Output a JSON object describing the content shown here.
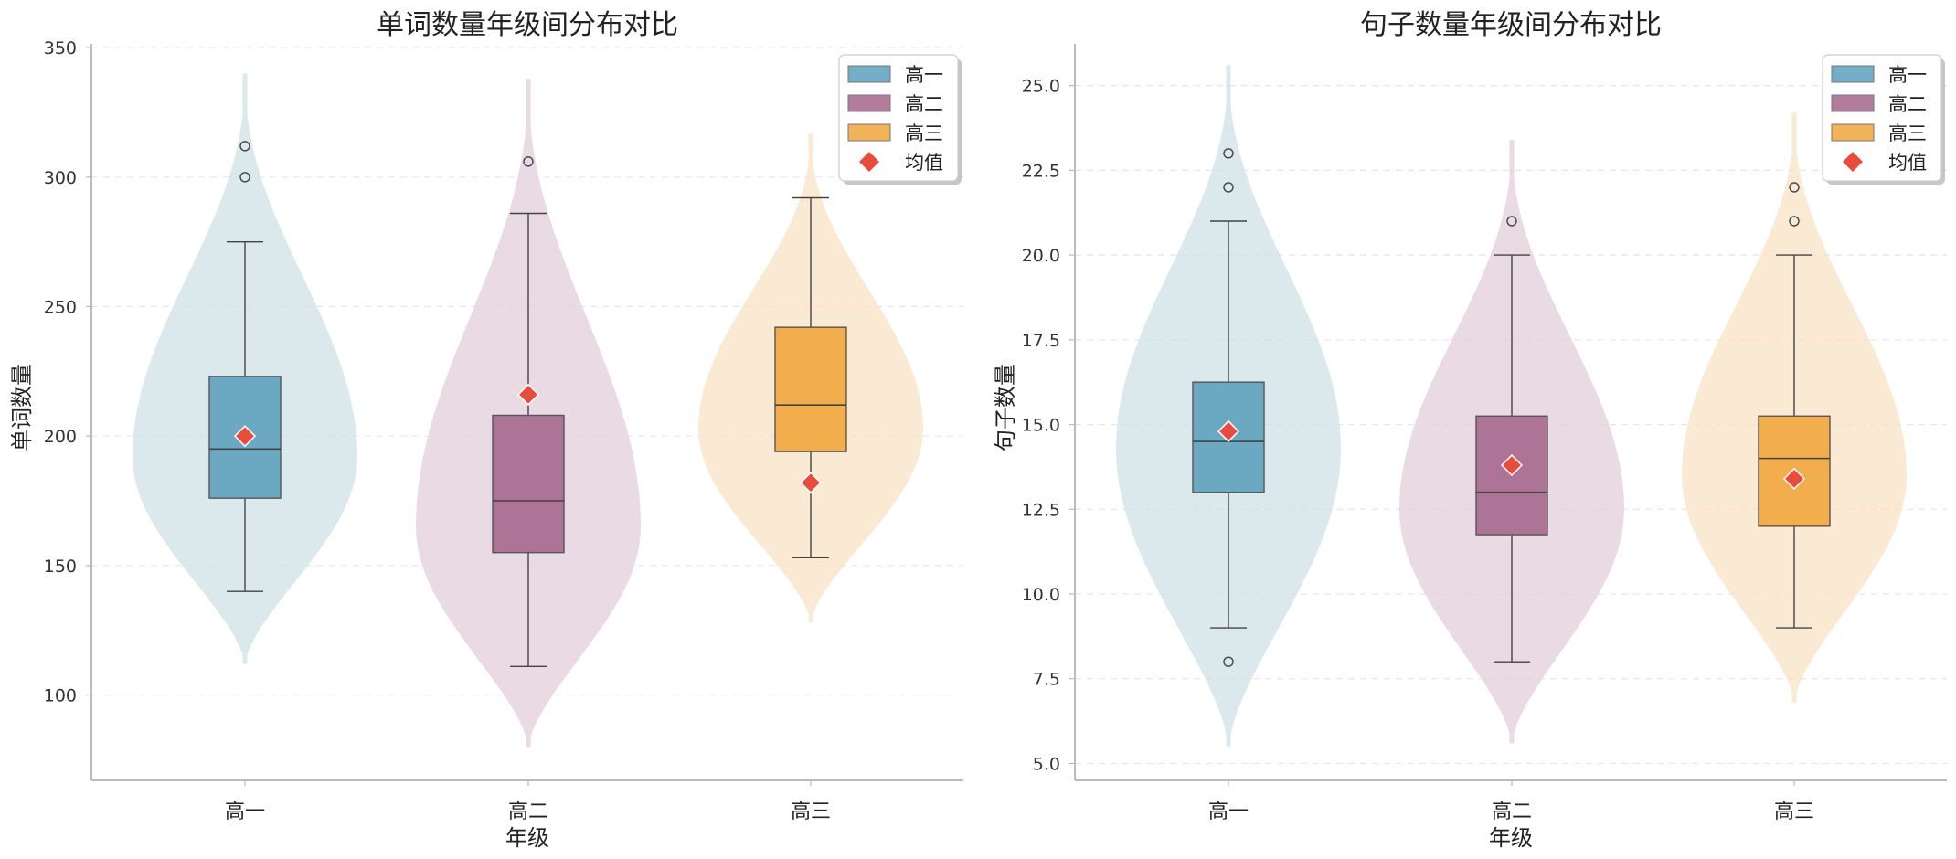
{
  "chart_data": [
    {
      "type": "violin",
      "title": "单词数量年级间分布对比",
      "xlabel": "年级",
      "ylabel": "单词数量",
      "ylim": [
        67,
        355
      ],
      "yticks": [
        100,
        150,
        200,
        250,
        300,
        350
      ],
      "grid": "horizontal dashed",
      "legend_placement": "top-right",
      "categories": [
        "高一",
        "高二",
        "高三"
      ],
      "groups": [
        {
          "name": "高一",
          "color": "#5b9fbc",
          "violin_color": "#cfe0e6",
          "violin_min": 112,
          "violin_max": 340,
          "violin_peak": 192,
          "whisker_low": 140,
          "q1": 176,
          "median": 195,
          "q3": 223,
          "whisker_high": 275,
          "mean": 200,
          "outliers": [
            300,
            312
          ]
        },
        {
          "name": "高二",
          "color": "#a5658c",
          "violin_color": "#e3cdd9",
          "violin_min": 80,
          "violin_max": 338,
          "violin_peak": 165,
          "whisker_low": 111,
          "q1": 155,
          "median": 175,
          "q3": 208,
          "whisker_high": 286,
          "mean": 216,
          "outliers": [
            306
          ]
        },
        {
          "name": "高三",
          "color": "#f0a53a",
          "violin_color": "#f8e2c4",
          "violin_min": 128,
          "violin_max": 317,
          "violin_peak": 203,
          "whisker_low": 153,
          "q1": 194,
          "median": 212,
          "q3": 242,
          "whisker_high": 292,
          "mean": 182,
          "outliers": []
        }
      ]
    },
    {
      "type": "violin",
      "title": "句子数量年级间分布对比",
      "xlabel": "年级",
      "ylabel": "句子数量",
      "ylim": [
        4.5,
        26.5
      ],
      "yticks": [
        5.0,
        7.5,
        10.0,
        12.5,
        15.0,
        17.5,
        20.0,
        22.5,
        25.0
      ],
      "grid": "horizontal dashed",
      "legend_placement": "top-right",
      "categories": [
        "高一",
        "高二",
        "高三"
      ],
      "groups": [
        {
          "name": "高一",
          "color": "#5b9fbc",
          "violin_color": "#cfe0e6",
          "violin_min": 5.5,
          "violin_max": 25.6,
          "violin_peak": 14.3,
          "whisker_low": 9,
          "q1": 13,
          "median": 14.5,
          "q3": 16.25,
          "whisker_high": 21,
          "mean": 14.8,
          "outliers": [
            8,
            22,
            23
          ]
        },
        {
          "name": "高二",
          "color": "#a5658c",
          "violin_color": "#e3cdd9",
          "violin_min": 5.6,
          "violin_max": 23.4,
          "violin_peak": 12.5,
          "whisker_low": 8,
          "q1": 11.75,
          "median": 13,
          "q3": 15.25,
          "whisker_high": 20,
          "mean": 13.8,
          "outliers": [
            21
          ]
        },
        {
          "name": "高三",
          "color": "#f0a53a",
          "violin_color": "#f8e2c4",
          "violin_min": 6.8,
          "violin_max": 24.2,
          "violin_peak": 13.5,
          "whisker_low": 9,
          "q1": 12,
          "median": 14,
          "q3": 15.25,
          "whisker_high": 20,
          "mean": 13.4,
          "outliers": [
            21,
            22
          ]
        }
      ]
    }
  ],
  "legend": {
    "items": [
      "高一",
      "高二",
      "高三"
    ],
    "mean_label": "均值",
    "mean_color": "#e74c3c"
  }
}
